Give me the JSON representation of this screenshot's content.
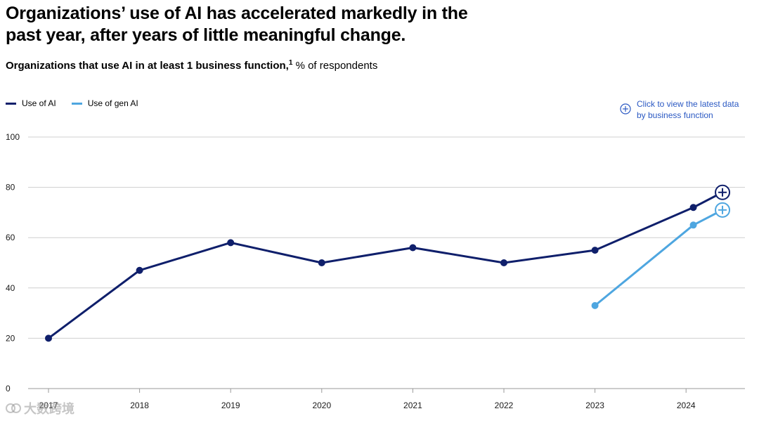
{
  "headline": "Organizations’ use of AI has accelerated markedly in the past year, after years of little meaningful change.",
  "subtitle": {
    "bold": "Organizations that use AI in at least 1 business function,",
    "footnote": "1",
    "unit": " % of respondents"
  },
  "legend": [
    {
      "label": "Use of AI",
      "color": "#0f1f6b"
    },
    {
      "label": "Use of gen AI",
      "color": "#4ea6e0"
    }
  ],
  "cta": {
    "text": "Click to view the latest data by business function",
    "icon": "circle-plus-icon",
    "color": "#2b59c3"
  },
  "watermark": {
    "text": "大数跨境",
    "icon": "watermark-logo-icon"
  },
  "chart_data": {
    "type": "line",
    "title": "Organizations that use AI in at least 1 business function",
    "ylabel": "% of respondents",
    "xlabel": "",
    "categories": [
      "2017",
      "2018",
      "2019",
      "2020",
      "2021",
      "2022",
      "2023",
      "2024"
    ],
    "ylim": [
      0,
      100
    ],
    "yticks": [
      0,
      20,
      40,
      60,
      80,
      100
    ],
    "grid": true,
    "legend_position": "top-left",
    "series": [
      {
        "name": "Use of AI",
        "color": "#0f1f6b",
        "points": [
          {
            "x": 2017,
            "y": 20
          },
          {
            "x": 2018,
            "y": 47
          },
          {
            "x": 2019,
            "y": 58
          },
          {
            "x": 2020,
            "y": 50
          },
          {
            "x": 2021,
            "y": 56
          },
          {
            "x": 2022,
            "y": 50
          },
          {
            "x": 2023,
            "y": 55
          },
          {
            "x": 2024.08,
            "y": 72
          },
          {
            "x": 2024.4,
            "y": 78
          }
        ]
      },
      {
        "name": "Use of gen AI",
        "color": "#4ea6e0",
        "points": [
          {
            "x": 2023,
            "y": 33
          },
          {
            "x": 2024.08,
            "y": 65
          },
          {
            "x": 2024.4,
            "y": 71
          }
        ]
      }
    ]
  }
}
